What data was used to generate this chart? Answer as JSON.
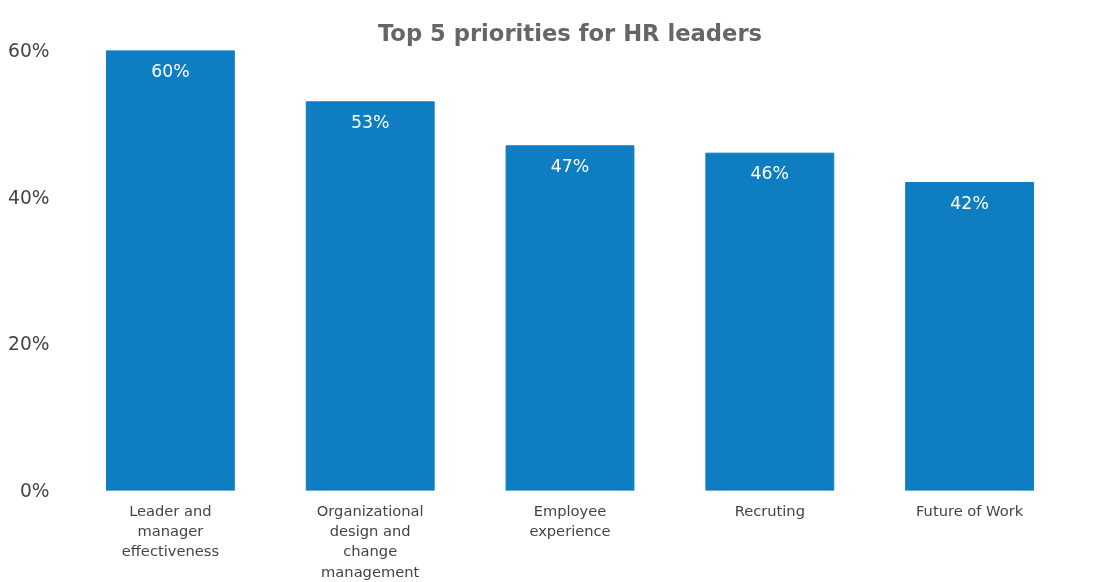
{
  "chart_data": {
    "type": "bar",
    "title": "Top 5 priorities for HR leaders",
    "categories": [
      "Leader and manager effectiveness",
      "Organizational design and change management",
      "Employee experience",
      "Recruting",
      "Future of Work"
    ],
    "values": [
      60,
      53,
      47,
      46,
      42
    ],
    "color": "#0f7dc2",
    "value_labels": [
      "60%",
      "53%",
      "47%",
      "46%",
      "42%"
    ],
    "ylim": [
      0,
      60
    ],
    "yticks": [
      {
        "value": 0,
        "label": "0%"
      },
      {
        "value": 20,
        "label": "20%"
      },
      {
        "value": 40,
        "label": "40%"
      },
      {
        "value": 60,
        "label": "60%"
      }
    ],
    "grid": false
  }
}
